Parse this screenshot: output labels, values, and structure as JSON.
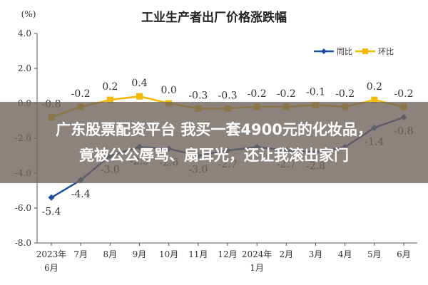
{
  "chart_data": {
    "type": "line",
    "title": "工业生产者出厂价格涨跌幅",
    "ylabel": "(%)",
    "xlabel": "",
    "ylim": [
      -8.0,
      4.0
    ],
    "y_ticks": [
      "4.0",
      "2.0",
      "0.0",
      "-2.0",
      "-4.0",
      "-6.0",
      "-8.0"
    ],
    "categories": [
      "2023年6月",
      "7月",
      "8月",
      "9月",
      "10月",
      "11月",
      "12月",
      "2024年1月",
      "2月",
      "3月",
      "4月",
      "5月",
      "6月"
    ],
    "tick_labels": [
      [
        "2023年",
        "6月"
      ],
      [
        "7月"
      ],
      [
        "8月"
      ],
      [
        "9月"
      ],
      [
        "10月"
      ],
      [
        "11月"
      ],
      [
        "12月"
      ],
      [
        "2024年",
        "1月"
      ],
      [
        "2月"
      ],
      [
        "3月"
      ],
      [
        "4月"
      ],
      [
        "5月"
      ],
      [
        "6月"
      ]
    ],
    "grid": false,
    "legend_position": "top-right",
    "series": [
      {
        "name": "同比",
        "color": "#1f4e9c",
        "values": [
          -5.4,
          -4.4,
          -3.0,
          -2.5,
          -2.6,
          -3.0,
          -2.7,
          -2.5,
          -2.7,
          -2.8,
          -2.5,
          -1.4,
          -0.8
        ],
        "labels": [
          "-5.4",
          "-4.4",
          "-3.0",
          "-2.5",
          "-2.6",
          "-3.0",
          "-2.7",
          "",
          "-2.7",
          "-2.8",
          "",
          "-1.4",
          "-0.8"
        ]
      },
      {
        "name": "环比",
        "color": "#f5b800",
        "values": [
          -0.8,
          -0.2,
          0.2,
          0.4,
          0.0,
          -0.3,
          -0.3,
          -0.2,
          -0.2,
          -0.1,
          -0.2,
          0.2,
          -0.2
        ],
        "labels": [
          "-0.8",
          "-0.2",
          "0.2",
          "0.4",
          "0.0",
          "-0.3",
          "-0.3",
          "-0.2",
          "-0.2",
          "-0.1",
          "-0.2",
          "0.2",
          "-0.2"
        ]
      }
    ]
  },
  "overlay": {
    "line1": "广东股票配资平台 我买一套4900元的化妆品，",
    "line2": "竟被公公辱骂、扇耳光，还让我滚出家门"
  }
}
